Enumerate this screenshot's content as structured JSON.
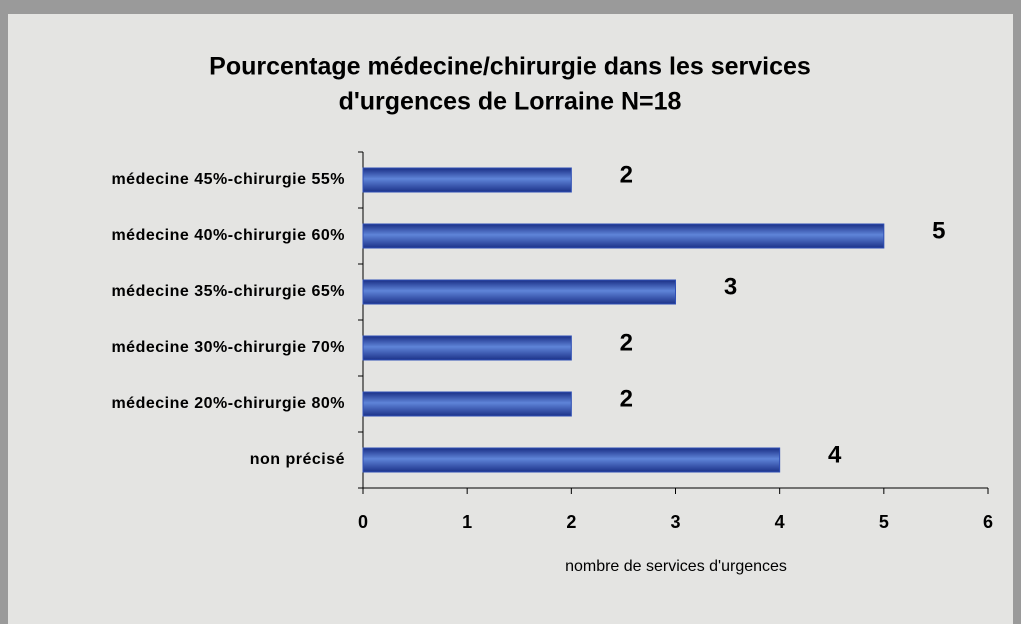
{
  "chart_data": {
    "type": "barh",
    "title": [
      "Pourcentage médecine/chirurgie dans les services",
      "d'urgences de Lorraine N=18"
    ],
    "categories": [
      "médecine 45%-chirurgie 55%",
      "médecine 40%-chirurgie 60%",
      "médecine 35%-chirurgie 65%",
      "médecine 30%-chirurgie 70%",
      "médecine 20%-chirurgie 80%",
      "non précisé"
    ],
    "values": [
      2,
      5,
      3,
      2,
      2,
      4
    ],
    "color": "#2f4fb5",
    "xlim": [
      0,
      6
    ],
    "xticks": [
      0,
      1,
      2,
      3,
      4,
      5,
      6
    ],
    "xlabel": "nombre de services d'urgences"
  }
}
